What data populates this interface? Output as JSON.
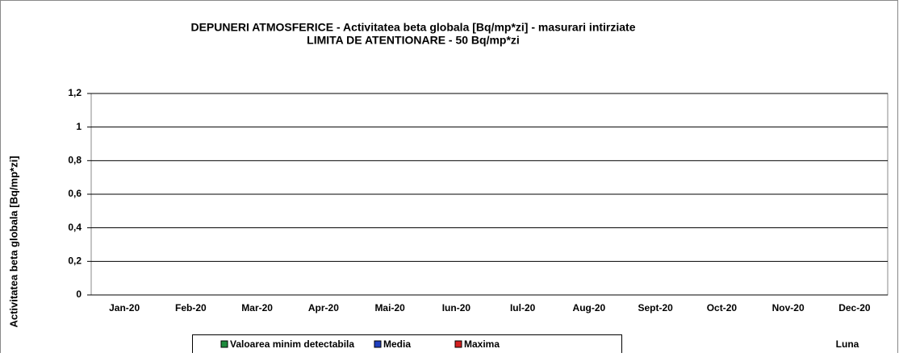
{
  "chart_data": {
    "type": "bar",
    "title": "DEPUNERI ATMOSFERICE - Activitatea beta globala [Bq/mp*zi] - masurari intirziate",
    "subtitle": "LIMITA DE ATENTIONARE - 50 Bq/mp*zi",
    "y_label": "Activitatea beta globala [Bq/mp*zi]",
    "x_label": "Luna",
    "categories": [
      "Jan-20",
      "Feb-20",
      "Mar-20",
      "Apr-20",
      "Mai-20",
      "Iun-20",
      "Iul-20",
      "Aug-20",
      "Sept-20",
      "Oct-20",
      "Nov-20",
      "Dec-20"
    ],
    "series": [
      {
        "name": "Valoarea minim detectabila",
        "color": "#1e8a3c",
        "values": [
          null,
          null,
          null,
          null,
          null,
          null,
          null,
          null,
          null,
          null,
          null,
          null
        ]
      },
      {
        "name": "Media",
        "color": "#1f3fbf",
        "values": [
          null,
          null,
          null,
          null,
          null,
          null,
          null,
          null,
          null,
          null,
          null,
          null
        ]
      },
      {
        "name": "Maxima",
        "color": "#d42020",
        "values": [
          null,
          null,
          null,
          null,
          null,
          null,
          null,
          null,
          null,
          null,
          null,
          null
        ]
      }
    ],
    "ylim": [
      0,
      1.2
    ],
    "yticks": [
      0,
      {
        "value": 0.2,
        "label": "0,2"
      },
      {
        "value": 0.4,
        "label": "0,4"
      },
      {
        "value": 0.6,
        "label": "0,6"
      },
      {
        "value": 0.8,
        "label": "0,8"
      },
      1,
      {
        "value": 1.2,
        "label": "1,2"
      }
    ],
    "grid": true,
    "legend": "bottom"
  }
}
